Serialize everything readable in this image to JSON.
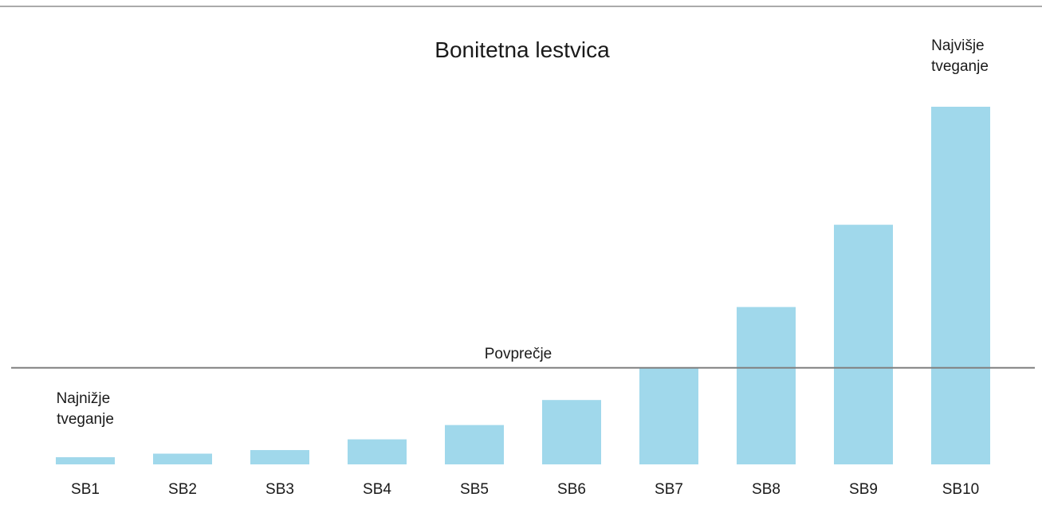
{
  "chart_data": {
    "type": "bar",
    "title": "Bonitetna lestvica",
    "categories": [
      "SB1",
      "SB2",
      "SB3",
      "SB4",
      "SB5",
      "SB6",
      "SB7",
      "SB8",
      "SB9",
      "SB10"
    ],
    "values": [
      2,
      3,
      4,
      7,
      11,
      18,
      27,
      44,
      67,
      100
    ],
    "ylim": [
      0,
      100
    ],
    "bar_color": "#a0d8eb",
    "grid": false,
    "reference_line": {
      "label": "Povprečje",
      "value": 27,
      "color": "#808080"
    },
    "annotations": {
      "lowest_risk": [
        "Najnižje",
        "tveganje"
      ],
      "highest_risk": [
        "Najvišje",
        "tveganje"
      ]
    }
  },
  "colors": {
    "top_rule": "#555555",
    "text": "#1a1a1a"
  }
}
